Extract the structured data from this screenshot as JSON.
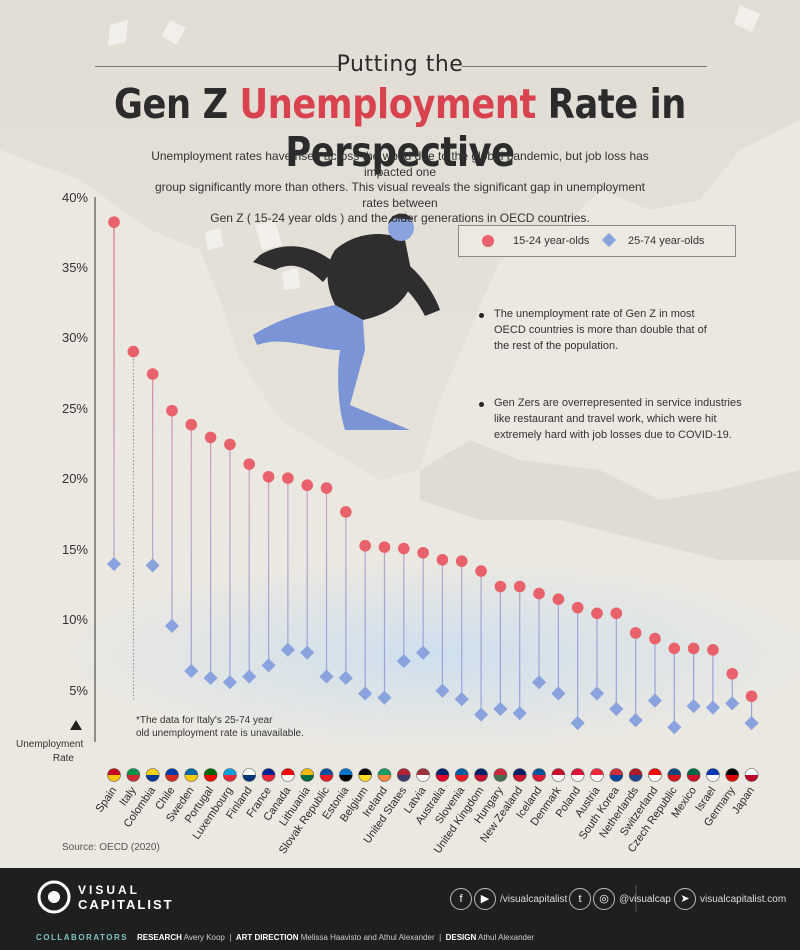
{
  "header": {
    "title_top": "Putting the",
    "title_main_pre": "Gen Z ",
    "title_main_highlight": "Unemployment",
    "title_main_post": " Rate in Perspective",
    "subtitle_line1": "Unemployment rates have risen across the world due to the global pandemic, but job loss has impacted one",
    "subtitle_line2": "group significantly more than others. This visual reveals the significant gap in unemployment rates between",
    "subtitle_line3": "Gen Z ( 15-24 year olds ) and the older generations in OECD countries."
  },
  "legend": {
    "youth": "15-24 year-olds",
    "adult": "25-74 year-olds"
  },
  "notes": {
    "note1_line1": "The unemployment rate of Gen Z in most",
    "note1_line2": "OECD countries is more than double that of",
    "note1_line3": "the rest of the population.",
    "note2_line1": "Gen Zers are overrepresented in service industries",
    "note2_line2": "like restaurant and travel work, which were hit",
    "note2_line3": "extremely hard with job losses due to COVID-19."
  },
  "axis": {
    "y_ticks": [
      "40%",
      "35%",
      "30%",
      "25%",
      "20%",
      "15%",
      "10%",
      "5%"
    ],
    "y_label_line1": "Unemployment",
    "y_label_line2": "Rate"
  },
  "italy_note": {
    "line1": "*The data for Italy's 25-74 year",
    "line2": "old unemployment rate is unavailable."
  },
  "source": "Source: OECD (2020)",
  "footer": {
    "brand_line1": "VISUAL",
    "brand_line2": "CAPITALIST",
    "handle_fb_yt": "/visualcapitalist",
    "handle_tw_ig": "@visualcap",
    "website": "visualcapitalist.com",
    "collaborators_label": "COLLABORATORS",
    "research_label": "RESEARCH",
    "research_name": "Avery Koop",
    "art_label": "ART DIRECTION",
    "art_names": "Melissa Haavisto and Athul Alexander",
    "design_label": "DESIGN",
    "design_name": "Athul Alexander"
  },
  "colors": {
    "youth": "#e8616b",
    "adult": "#8aa2de",
    "title_highlight": "#d9434f",
    "footer_bg": "#1f1f1f"
  },
  "chart_data": {
    "type": "scatter",
    "ylim": [
      0,
      40
    ],
    "y_unit": "%",
    "categories": [
      "Spain",
      "Italy",
      "Colombia",
      "Chile",
      "Sweden",
      "Portugal",
      "Luxembourg",
      "Finland",
      "France",
      "Canada",
      "Lithuania",
      "Slovak Republic",
      "Estonia",
      "Belgium",
      "Ireland",
      "United States",
      "Latvia",
      "Australia",
      "Slovenia",
      "United Kingdom",
      "Hungary",
      "New Zealand",
      "Iceland",
      "Denmark",
      "Poland",
      "Austria",
      "South Korea",
      "Netherlands",
      "Switzerland",
      "Czech Republic",
      "Mexico",
      "Israel",
      "Germany",
      "Japan"
    ],
    "series": [
      {
        "name": "15-24 year-olds",
        "values": [
          38.3,
          29.1,
          27.5,
          24.9,
          23.9,
          23.0,
          22.5,
          21.1,
          20.2,
          20.1,
          19.6,
          19.4,
          17.7,
          15.3,
          15.2,
          15.1,
          14.8,
          14.3,
          14.2,
          13.5,
          12.4,
          12.4,
          11.9,
          11.5,
          10.9,
          10.5,
          10.5,
          9.1,
          8.7,
          8.0,
          8.0,
          7.9,
          6.2,
          4.6
        ]
      },
      {
        "name": "25-74 year-olds",
        "values": [
          14.0,
          null,
          13.9,
          9.6,
          6.4,
          5.9,
          5.6,
          6.0,
          6.8,
          7.9,
          7.7,
          6.0,
          5.9,
          4.8,
          4.5,
          7.1,
          7.7,
          5.0,
          4.4,
          3.3,
          3.7,
          3.4,
          5.6,
          4.8,
          2.7,
          4.8,
          3.7,
          2.9,
          4.3,
          2.4,
          3.9,
          3.8,
          4.1,
          2.7
        ]
      }
    ]
  }
}
